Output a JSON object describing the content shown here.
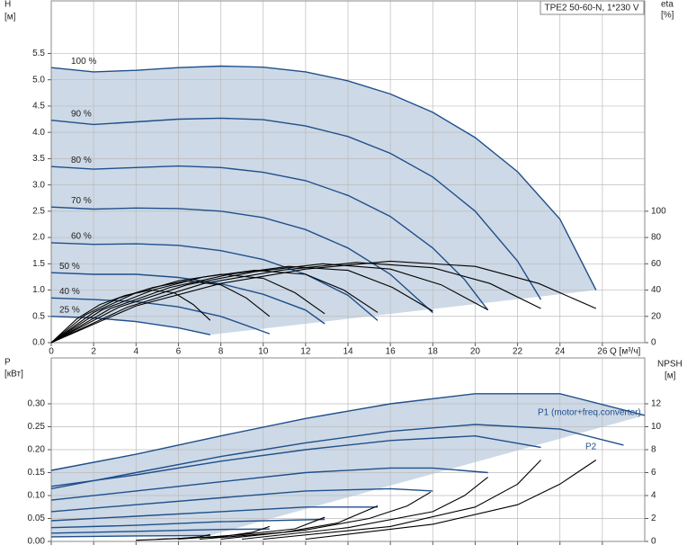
{
  "chart_data": [
    {
      "type": "line",
      "title": "TPE2 50-60-N, 1*230 V",
      "ylabel": "H",
      "yunit": "[м]",
      "y2label": "eta",
      "y2unit": "[%]",
      "xlabel": "Q [м³/ч]",
      "xlim": [
        0,
        28
      ],
      "ylim": [
        0,
        6.5
      ],
      "y2lim": [
        0,
        260
      ],
      "xticks": [
        0,
        2,
        4,
        6,
        8,
        10,
        12,
        14,
        16,
        18,
        20,
        22,
        24,
        26
      ],
      "yticks": [
        {
          "value": 0,
          "label": "0.0"
        },
        0.5,
        {
          "value": 1,
          "label": "1.0"
        },
        1.5,
        {
          "value": 2,
          "label": "2.0"
        },
        2.5,
        {
          "value": 3,
          "label": "3.0"
        },
        3.5,
        {
          "value": 4,
          "label": "4.0"
        },
        4.5,
        {
          "value": 5,
          "label": "5.0"
        },
        5.5
      ],
      "y2ticks": [
        0,
        20,
        40,
        60,
        80,
        100
      ],
      "grid": true,
      "shade_color": "#cdd9e6",
      "series": [
        {
          "name": "100 %",
          "color": "#1f4f8c",
          "x": [
            0,
            2,
            4,
            6,
            8,
            10,
            12,
            14,
            16,
            18,
            20,
            22,
            24,
            25.7
          ],
          "values": [
            5.23,
            5.15,
            5.18,
            5.23,
            5.26,
            5.24,
            5.15,
            4.98,
            4.73,
            4.38,
            3.9,
            3.25,
            2.35,
            1.0
          ]
        },
        {
          "name": "90 %",
          "color": "#1f4f8c",
          "x": [
            0,
            2,
            4,
            6,
            8,
            10,
            12,
            14,
            16,
            18,
            20,
            22,
            23.1
          ],
          "values": [
            4.23,
            4.15,
            4.2,
            4.25,
            4.27,
            4.24,
            4.12,
            3.92,
            3.6,
            3.15,
            2.5,
            1.55,
            0.82
          ]
        },
        {
          "name": "80 %",
          "color": "#1f4f8c",
          "x": [
            0,
            2,
            4,
            6,
            8,
            10,
            12,
            14,
            16,
            18,
            19.5,
            20.6
          ],
          "values": [
            3.35,
            3.3,
            3.33,
            3.36,
            3.33,
            3.24,
            3.08,
            2.8,
            2.4,
            1.8,
            1.2,
            0.62
          ]
        },
        {
          "name": "70 %",
          "color": "#1f4f8c",
          "x": [
            0,
            2,
            4,
            6,
            8,
            10,
            12,
            14,
            16,
            18
          ],
          "values": [
            2.58,
            2.54,
            2.56,
            2.55,
            2.5,
            2.38,
            2.15,
            1.8,
            1.3,
            0.57
          ]
        },
        {
          "name": "60 %",
          "color": "#1f4f8c",
          "x": [
            0,
            2,
            4,
            6,
            8,
            10,
            12,
            14,
            15.4
          ],
          "values": [
            1.9,
            1.87,
            1.88,
            1.85,
            1.75,
            1.58,
            1.3,
            0.9,
            0.42
          ]
        },
        {
          "name": "50 %",
          "color": "#1f4f8c",
          "x": [
            0,
            2,
            4,
            6,
            8,
            10,
            12,
            12.9
          ],
          "values": [
            1.33,
            1.3,
            1.3,
            1.24,
            1.12,
            0.92,
            0.62,
            0.36
          ]
        },
        {
          "name": "40 %",
          "color": "#1f4f8c",
          "x": [
            0,
            2,
            4,
            6,
            8,
            10.3
          ],
          "values": [
            0.85,
            0.82,
            0.78,
            0.68,
            0.5,
            0.17
          ]
        },
        {
          "name": "25 %",
          "color": "#1f4f8c",
          "x": [
            0,
            2,
            4,
            6,
            7.5
          ],
          "values": [
            0.5,
            0.47,
            0.4,
            0.28,
            0.15
          ]
        },
        {
          "axis": "y2",
          "color": "#000000",
          "x": [
            0,
            4,
            8,
            12,
            16,
            20,
            23,
            25.7
          ],
          "values": [
            0,
            28,
            45,
            56,
            62,
            58,
            45,
            26
          ]
        },
        {
          "axis": "y2",
          "color": "#000000",
          "x": [
            0,
            3.6,
            7.2,
            10.8,
            14.4,
            18,
            20.7,
            23.1
          ],
          "values": [
            0,
            27,
            45,
            55,
            61,
            57,
            45,
            26
          ]
        },
        {
          "axis": "y2",
          "color": "#000000",
          "x": [
            0,
            3.2,
            6.4,
            9.6,
            12.8,
            16,
            18.4,
            20.6
          ],
          "values": [
            0,
            27,
            44,
            54,
            60,
            56,
            44,
            25
          ]
        },
        {
          "axis": "y2",
          "color": "#000000",
          "x": [
            0,
            2.8,
            5.6,
            8.4,
            11.2,
            14,
            16.1,
            18
          ],
          "values": [
            0,
            26,
            42,
            52,
            58,
            55,
            42,
            24
          ]
        },
        {
          "axis": "y2",
          "color": "#000000",
          "x": [
            0,
            2.4,
            4.8,
            7.2,
            9.6,
            12,
            13.8,
            15.4
          ],
          "values": [
            0,
            25,
            40,
            50,
            55,
            52,
            40,
            23
          ]
        },
        {
          "axis": "y2",
          "color": "#000000",
          "x": [
            0,
            2,
            4,
            6,
            8,
            10,
            11.5,
            12.9
          ],
          "values": [
            0,
            23,
            38,
            47,
            52,
            49,
            38,
            22
          ]
        },
        {
          "axis": "y2",
          "color": "#000000",
          "x": [
            0,
            1.6,
            3.2,
            4.8,
            6.4,
            8,
            9.2,
            10.3
          ],
          "values": [
            0,
            21,
            34,
            42,
            47,
            44,
            34,
            20
          ]
        },
        {
          "axis": "y2",
          "color": "#000000",
          "x": [
            0,
            1.2,
            2.3,
            3.5,
            4.7,
            5.8,
            6.7,
            7.5
          ],
          "values": [
            0,
            18,
            29,
            36,
            40,
            38,
            29,
            17
          ]
        }
      ]
    },
    {
      "type": "line",
      "ylabel": "P",
      "yunit": "[кВт]",
      "y2label": "NPSH",
      "y2unit": "[м]",
      "xlim": [
        0,
        28
      ],
      "ylim": [
        0,
        0.4
      ],
      "y2lim": [
        0,
        16
      ],
      "yticks": [
        {
          "value": 0,
          "label": "0.00"
        },
        0.05,
        {
          "value": 0.1,
          "label": "0.10"
        },
        0.15,
        {
          "value": 0.2,
          "label": "0.20"
        },
        0.25,
        {
          "value": 0.3,
          "label": "0.30"
        }
      ],
      "y2ticks": [
        0,
        2,
        4,
        6,
        8,
        10,
        12
      ],
      "grid": true,
      "shade_color": "#cdd9e6",
      "annotations": [
        {
          "text": "P1 (motor+freq.converter)",
          "color": "#1f4f8c"
        },
        {
          "text": "P2",
          "color": "#1f4f8c"
        }
      ],
      "series": [
        {
          "color": "#1f4f8c",
          "x": [
            0,
            4,
            8,
            12,
            16,
            20,
            24,
            28
          ],
          "values": [
            0.155,
            0.19,
            0.23,
            0.268,
            0.3,
            0.322,
            0.322,
            0.275
          ]
        },
        {
          "color": "#1f4f8c",
          "x": [
            0,
            4,
            8,
            12,
            16,
            20,
            24,
            27
          ],
          "values": [
            0.115,
            0.15,
            0.185,
            0.215,
            0.24,
            0.255,
            0.245,
            0.21
          ]
        },
        {
          "color": "#1f4f8c",
          "x": [
            0,
            4,
            8,
            12,
            16,
            20,
            23.1
          ],
          "values": [
            0.12,
            0.145,
            0.175,
            0.2,
            0.22,
            0.23,
            0.205
          ]
        },
        {
          "color": "#1f4f8c",
          "x": [
            0,
            4,
            8,
            12,
            16,
            18,
            20.6
          ],
          "values": [
            0.09,
            0.11,
            0.13,
            0.15,
            0.16,
            0.16,
            0.15
          ]
        },
        {
          "color": "#1f4f8c",
          "x": [
            0,
            4,
            8,
            12,
            16,
            18
          ],
          "values": [
            0.065,
            0.08,
            0.095,
            0.11,
            0.115,
            0.11
          ]
        },
        {
          "color": "#1f4f8c",
          "x": [
            0,
            4,
            8,
            12,
            15.4
          ],
          "values": [
            0.045,
            0.055,
            0.065,
            0.075,
            0.075
          ]
        },
        {
          "color": "#1f4f8c",
          "x": [
            0,
            4,
            8,
            12.9
          ],
          "values": [
            0.03,
            0.035,
            0.043,
            0.048
          ]
        },
        {
          "color": "#1f4f8c",
          "x": [
            0,
            4,
            8,
            10.3
          ],
          "values": [
            0.018,
            0.022,
            0.026,
            0.027
          ]
        },
        {
          "color": "#1f4f8c",
          "x": [
            0,
            4,
            7.5
          ],
          "values": [
            0.01,
            0.012,
            0.013
          ]
        },
        {
          "axis": "y2",
          "color": "#000000",
          "x": [
            12,
            18,
            22,
            24,
            25.7
          ],
          "values": [
            0.2,
            1.5,
            3.2,
            5,
            7.1
          ]
        },
        {
          "axis": "y2",
          "color": "#000000",
          "x": [
            10,
            16,
            20,
            22,
            23.1
          ],
          "values": [
            0.2,
            1.3,
            3,
            5,
            7.1
          ]
        },
        {
          "axis": "y2",
          "color": "#000000",
          "x": [
            9,
            14,
            18,
            19.5,
            20.6
          ],
          "values": [
            0.2,
            1.2,
            2.6,
            4,
            5.6
          ]
        },
        {
          "axis": "y2",
          "color": "#000000",
          "x": [
            8,
            12,
            15,
            16.8,
            17.9
          ],
          "values": [
            0.2,
            1,
            2,
            3.1,
            4.3
          ]
        },
        {
          "axis": "y2",
          "color": "#000000",
          "x": [
            7,
            11,
            13.5,
            15.4
          ],
          "values": [
            0.2,
            0.8,
            1.6,
            3.1
          ]
        },
        {
          "axis": "y2",
          "color": "#000000",
          "x": [
            6,
            9,
            11.5,
            12.9
          ],
          "values": [
            0.2,
            0.6,
            1.1,
            2.1
          ]
        },
        {
          "axis": "y2",
          "color": "#000000",
          "x": [
            5,
            8,
            9.5,
            10.3
          ],
          "values": [
            0.2,
            0.4,
            0.8,
            1.3
          ]
        },
        {
          "axis": "y2",
          "color": "#000000",
          "x": [
            4,
            6,
            7,
            7.5
          ],
          "values": [
            0.1,
            0.25,
            0.4,
            0.6
          ]
        }
      ]
    }
  ]
}
